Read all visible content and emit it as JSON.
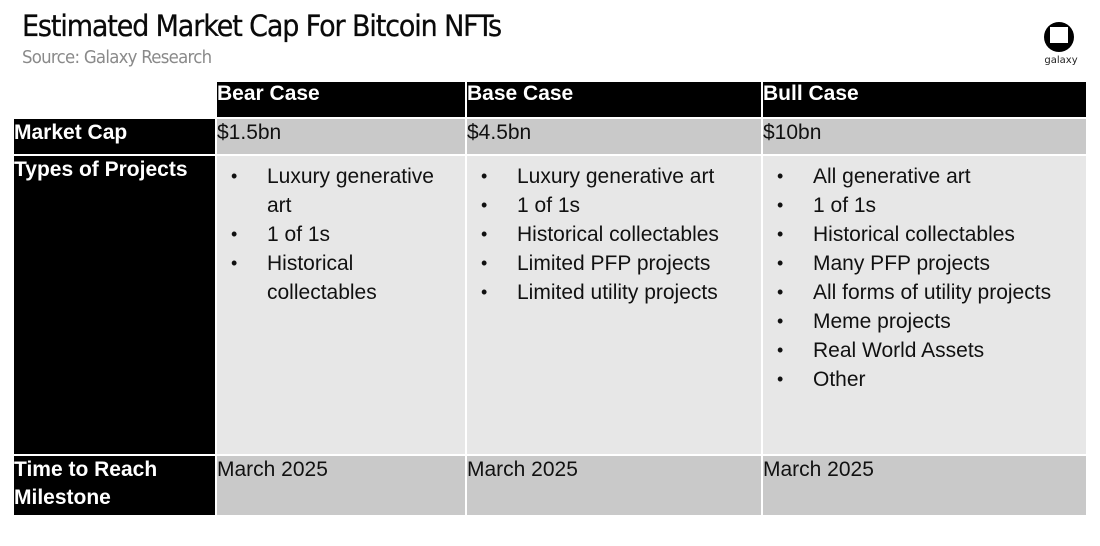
{
  "header": {
    "title": "Estimated Market Cap For Bitcoin NFTs",
    "subtitle": "Source: Galaxy Research",
    "logo_text": "galaxy"
  },
  "table": {
    "columns": [
      "Bear Case",
      "Base Case",
      "Bull Case"
    ],
    "rows": {
      "market_cap": {
        "label": "Market Cap",
        "values": [
          "$1.5bn",
          "$4.5bn",
          "$10bn"
        ]
      },
      "types": {
        "label": "Types of Projects",
        "values": [
          [
            "Luxury generative art",
            "1 of 1s",
            "Historical collectables"
          ],
          [
            "Luxury generative art",
            "1 of 1s",
            "Historical collectables",
            "Limited PFP projects",
            "Limited utility projects"
          ],
          [
            "All generative art",
            "1 of 1s",
            "Historical collectables",
            "Many PFP projects",
            "All forms of utility projects",
            "Meme projects",
            "Real World Assets",
            "Other"
          ]
        ]
      },
      "time": {
        "label": "Time to Reach Milestone",
        "values": [
          "March 2025",
          "March 2025",
          "March 2025"
        ]
      }
    }
  },
  "colors": {
    "header_bg": "#000000",
    "row_dark": "#c9c9c9",
    "row_light": "#e7e7e7",
    "subtitle": "#8a8a8a"
  }
}
